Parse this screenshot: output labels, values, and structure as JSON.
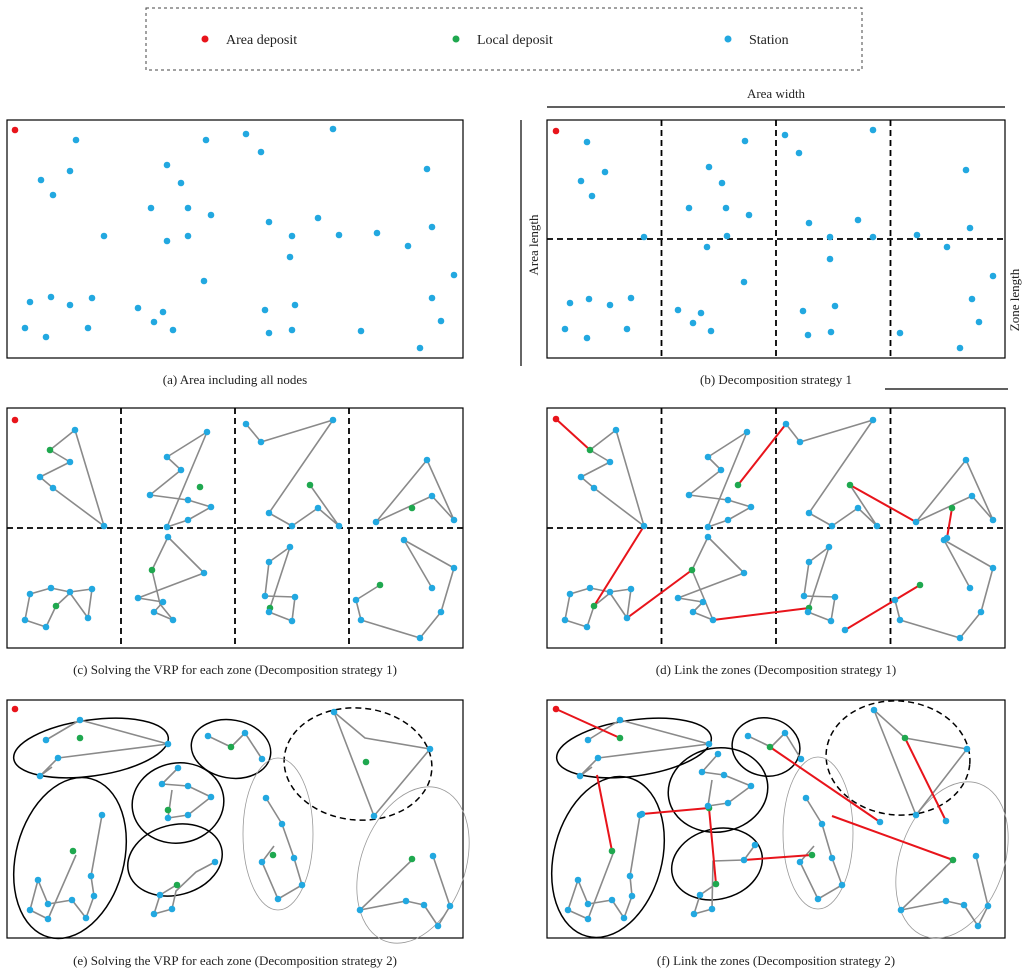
{
  "colors": {
    "area_deposit": "#e8141b",
    "local_deposit": "#1fa84f",
    "station": "#22a8e0",
    "route": "#8a8a8a",
    "link": "#e8141b",
    "frame": "#000000"
  },
  "legend": {
    "area_deposit": "Area deposit",
    "local_deposit": "Local deposit",
    "station": "Station"
  },
  "dimension_labels": {
    "area_width": "Area width",
    "area_length": "Area length",
    "zone_length": "Zone length"
  },
  "captions": {
    "a": "(a) Area including all nodes",
    "b": "(b) Decomposition strategy 1",
    "c": "(c) Solving the VRP for each zone (Decomposition strategy 1)",
    "d": "(d) Link the zones (Decomposition strategy 1)",
    "e": "(e) Solving the VRP for each zone (Decomposition strategy 2)",
    "f": "(f) Link the zones (Decomposition strategy 2)"
  }
}
